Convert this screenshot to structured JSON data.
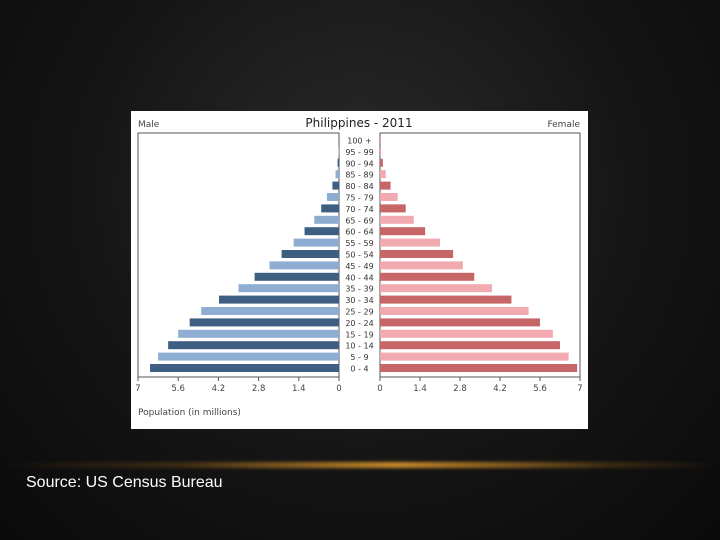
{
  "slide": {
    "caption": "Source: US Census Bureau",
    "divider_color": "#c98a2a"
  },
  "chart_data": {
    "type": "bar",
    "subtype": "population-pyramid",
    "title": "Philippines - 2011",
    "left_label": "Male",
    "right_label": "Female",
    "xlabel": "Population (in millions)",
    "categories": [
      "100 +",
      "95 - 99",
      "90 - 94",
      "85 - 89",
      "80 - 84",
      "75 - 79",
      "70 - 74",
      "65 - 69",
      "60 - 64",
      "55 - 59",
      "50 - 54",
      "45 - 49",
      "40 - 44",
      "35 - 39",
      "30 - 34",
      "25 - 29",
      "20 - 24",
      "15 - 19",
      "10 - 14",
      "5 - 9",
      "0 - 4"
    ],
    "series": [
      {
        "name": "Male",
        "values": [
          0.01,
          0.02,
          0.05,
          0.12,
          0.23,
          0.42,
          0.62,
          0.86,
          1.2,
          1.58,
          2.0,
          2.42,
          2.94,
          3.5,
          4.18,
          4.8,
          5.2,
          5.6,
          5.95,
          6.3,
          6.58
        ]
      },
      {
        "name": "Female",
        "values": [
          0.02,
          0.04,
          0.1,
          0.2,
          0.37,
          0.62,
          0.9,
          1.18,
          1.58,
          2.1,
          2.56,
          2.9,
          3.3,
          3.92,
          4.6,
          5.2,
          5.6,
          6.05,
          6.3,
          6.6,
          6.9
        ]
      }
    ],
    "xlim": [
      0,
      7
    ],
    "male_ticks": [
      "7",
      "5.6",
      "4.2",
      "2.8",
      "1.4",
      "0"
    ],
    "female_ticks": [
      "0",
      "1.4",
      "2.8",
      "4.2",
      "5.6",
      "7"
    ],
    "colors": {
      "male_dark": "#3f5f82",
      "male_light": "#8eaed1",
      "female_dark": "#c66666",
      "female_light": "#f0aab0"
    },
    "grid": false
  }
}
